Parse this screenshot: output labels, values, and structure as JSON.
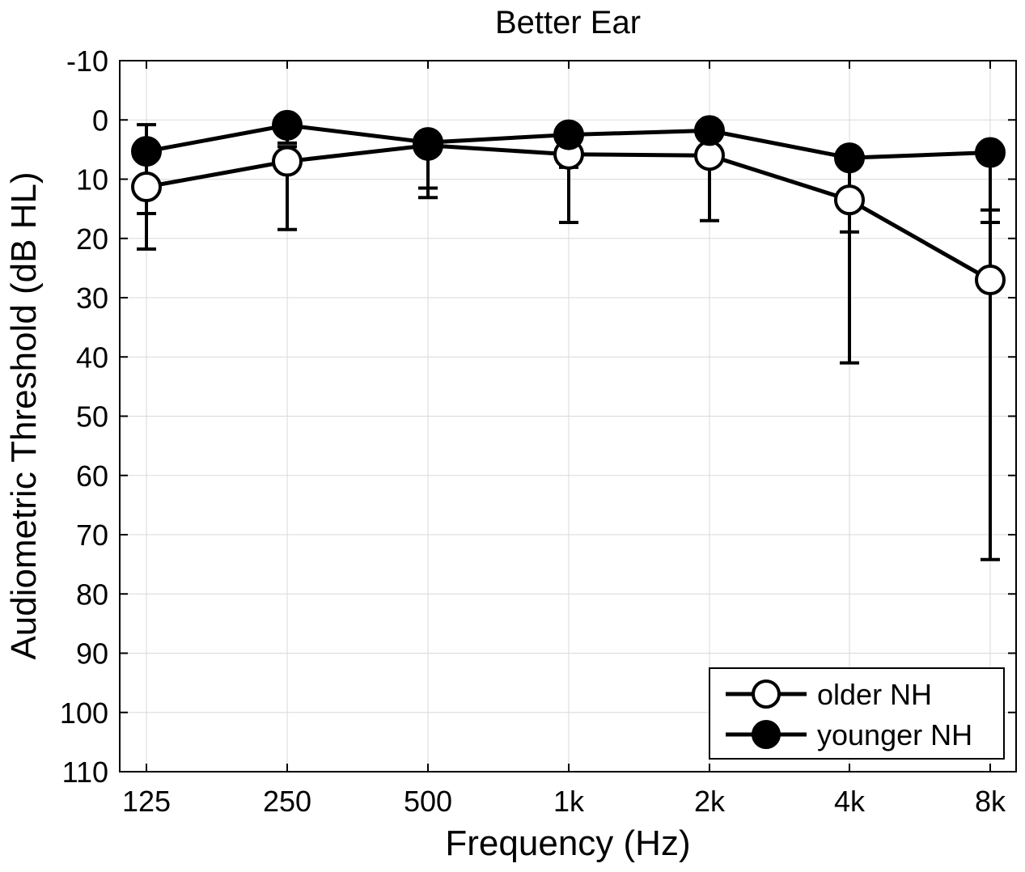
{
  "chart_data": {
    "type": "line",
    "title": "Better Ear",
    "xlabel": "Frequency (Hz)",
    "ylabel": "Audiometric Threshold (dB HL)",
    "categories": [
      "125",
      "250",
      "500",
      "1k",
      "2k",
      "4k",
      "8k"
    ],
    "y_ticks": [
      -10,
      0,
      10,
      20,
      30,
      40,
      50,
      60,
      70,
      80,
      90,
      100,
      110
    ],
    "ylim": [
      -10,
      110
    ],
    "y_inverted": true,
    "grid": true,
    "legend_position": "bottom-right",
    "series": [
      {
        "name": "older NH",
        "marker": "open-circle",
        "marker_fill": "#ffffff",
        "values": [
          11.3,
          7,
          4.3,
          5.8,
          6,
          13.5,
          27
        ],
        "err_lower": [
          10.5,
          11.5,
          8.8,
          11.5,
          11,
          27.5,
          47.2
        ],
        "err_upper": [
          10.5,
          2.5,
          -0.3,
          0,
          1,
          -0.4,
          11.8
        ]
      },
      {
        "name": "younger NH",
        "marker": "filled-circle",
        "marker_fill": "#000000",
        "values": [
          5.3,
          0.9,
          3.8,
          2.5,
          1.8,
          6.4,
          5.5
        ],
        "err_lower": [
          10.5,
          3,
          7.7,
          5.5,
          5.5,
          12.5,
          11.8
        ],
        "err_upper": [
          0.2,
          -1.2,
          -0.3,
          -1.2,
          -2.5,
          -0.3,
          -0.8
        ]
      }
    ]
  }
}
